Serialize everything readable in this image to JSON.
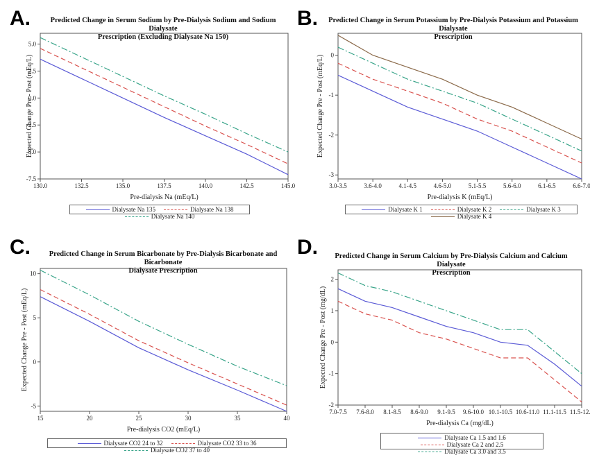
{
  "panels": [
    {
      "letter": "A.",
      "title_line1": "Predicted Change in Serum Sodium by Pre-Dialysis Sodium and Sodium Dialysate",
      "title_line2": "Prescription (Excluding Dialysate Na 150)"
    },
    {
      "letter": "B.",
      "title_line1": "Predicted Change in Serum Potassium by Pre-Dialysis Potassium and Potassium Dialysate",
      "title_line2": "Prescription"
    },
    {
      "letter": "C.",
      "title_line1": "Predicted Change in Serum Bicarbonate by Pre-Dialysis Bicarbonate and Bicarbonate",
      "title_line2": "Dialysate Prescription"
    },
    {
      "letter": "D.",
      "title_line1": "Predicted Change in Serum Calcium by Pre-Dialysis Calcium and Calcium Dialysate",
      "title_line2": "Prescription"
    }
  ],
  "colors": {
    "blue": "#5b5bd6",
    "red": "#d9534f",
    "green": "#3aa58a",
    "brown": "#8b6a4a"
  },
  "chart_data": [
    {
      "type": "line",
      "title": "Predicted Change in Serum Sodium by Pre-Dialysis Sodium and Sodium Dialysate Prescription (Excluding Dialysate Na 150)",
      "xlabel": "Pre-dialysis Na (mEq/L)",
      "ylabel": "Expected Change Pre - Post (mEq/L)",
      "xlim": [
        130,
        145
      ],
      "ylim": [
        -7.5,
        6
      ],
      "xticks": [
        130,
        132.5,
        135,
        137.5,
        140,
        142.5,
        145
      ],
      "xtick_labels": [
        "130.0",
        "132.5",
        "135.0",
        "137.5",
        "140.0",
        "142.5",
        "145.0"
      ],
      "yticks": [
        -7.5,
        -5,
        -2.5,
        0,
        2.5,
        5
      ],
      "ytick_labels": [
        "-7.5",
        "-5.0",
        "-2.5",
        "0.0",
        "2.5",
        "5.0"
      ],
      "x": [
        130,
        132.5,
        135,
        137.5,
        140,
        142.5,
        145
      ],
      "series": [
        {
          "name": "Dialysate Na 135",
          "color": "blue",
          "dash": "solid",
          "values": [
            3.6,
            1.8,
            0.0,
            -1.8,
            -3.5,
            -5.2,
            -7.1
          ]
        },
        {
          "name": "Dialysate Na 138",
          "color": "red",
          "dash": "dashed",
          "values": [
            4.6,
            2.8,
            1.0,
            -0.8,
            -2.6,
            -4.3,
            -6.1
          ]
        },
        {
          "name": "Dialysate Na 140",
          "color": "green",
          "dash": "dashdot",
          "values": [
            5.6,
            3.8,
            2.0,
            0.2,
            -1.5,
            -3.3,
            -5.0
          ]
        }
      ],
      "legend": "bottom"
    },
    {
      "type": "line",
      "title": "Predicted Change in Serum Potassium by Pre-Dialysis Potassium and Potassium Dialysate Prescription",
      "xlabel": "Pre-dialysis K (mEq/L)",
      "ylabel": "Expected Change Pre - Post (mEq/L)",
      "ylim": [
        -3.1,
        0.55
      ],
      "categories": [
        "3.0-3.5",
        "3.6-4.0",
        "4.1-4.5",
        "4.6-5.0",
        "5.1-5.5",
        "5.6-6.0",
        "6.1-6.5",
        "6.6-7.0"
      ],
      "yticks": [
        -3,
        -2,
        -1,
        0
      ],
      "ytick_labels": [
        "-3",
        "-2",
        "-1",
        "0"
      ],
      "series": [
        {
          "name": "Dialysate K 1",
          "color": "blue",
          "dash": "solid",
          "values": [
            -0.5,
            -0.9,
            -1.3,
            -1.6,
            -1.9,
            -2.3,
            -2.7,
            -3.1
          ]
        },
        {
          "name": "Dialysate K 2",
          "color": "red",
          "dash": "dashed",
          "values": [
            -0.2,
            -0.6,
            -0.9,
            -1.2,
            -1.6,
            -1.9,
            -2.3,
            -2.7
          ]
        },
        {
          "name": "Dialysate K 3",
          "color": "green",
          "dash": "dashdot",
          "values": [
            0.2,
            -0.2,
            -0.6,
            -0.9,
            -1.2,
            -1.6,
            -2.0,
            -2.4
          ]
        },
        {
          "name": "Dialysate K 4",
          "color": "brown",
          "dash": "solid",
          "values": [
            0.5,
            0.0,
            -0.3,
            -0.6,
            -1.0,
            -1.3,
            -1.7,
            -2.1
          ]
        }
      ],
      "legend": "bottom"
    },
    {
      "type": "line",
      "title": "Predicted Change in Serum Bicarbonate by Pre-Dialysis Bicarbonate and Bicarbonate Dialysate Prescription",
      "xlabel": "Pre-dialysis CO2 (mEq/L)",
      "ylabel": "Expected Change Pre - Post (mEq/L)",
      "xlim": [
        15,
        40
      ],
      "ylim": [
        -5.6,
        10.6
      ],
      "xticks": [
        15,
        20,
        25,
        30,
        35,
        40
      ],
      "xtick_labels": [
        "15",
        "20",
        "25",
        "30",
        "35",
        "40"
      ],
      "yticks": [
        -5,
        0,
        5,
        10
      ],
      "ytick_labels": [
        "-5",
        "0",
        "5",
        "10"
      ],
      "x": [
        15,
        20,
        25,
        30,
        35,
        40
      ],
      "series": [
        {
          "name": "Dialysate CO2 24 to 32",
          "color": "blue",
          "dash": "solid",
          "values": [
            7.4,
            4.6,
            1.6,
            -0.9,
            -3.2,
            -5.6
          ]
        },
        {
          "name": "Dialysate CO2 33 to 36",
          "color": "red",
          "dash": "dashed",
          "values": [
            8.2,
            5.4,
            2.4,
            -0.1,
            -2.5,
            -4.9
          ]
        },
        {
          "name": "Dialysate CO2 37 to 40",
          "color": "green",
          "dash": "dashdot",
          "values": [
            10.4,
            7.6,
            4.6,
            2.0,
            -0.5,
            -2.7
          ]
        }
      ],
      "legend": "bottom"
    },
    {
      "type": "line",
      "title": "Predicted Change in Serum Calcium by Pre-Dialysis Calcium and Calcium Dialysate Prescription",
      "xlabel": "Pre-dialysis Ca (mg/dL)",
      "ylabel": "Expected Change Pre - Post (mg/dL)",
      "ylim": [
        -2.0,
        2.3
      ],
      "categories": [
        "7.0-7.5",
        "7.6-8.0",
        "8.1-8.5",
        "8.6-9.0",
        "9.1-9.5",
        "9.6-10.0",
        "10.1-10.5",
        "10.6-11.0",
        "11.1-11.5",
        "11.5-12.0"
      ],
      "yticks": [
        -2,
        -1,
        0,
        1,
        2
      ],
      "ytick_labels": [
        "-2",
        "-1",
        "0",
        "1",
        "2"
      ],
      "series": [
        {
          "name": "Dialysate Ca 1.5 and 1.6",
          "color": "blue",
          "dash": "solid",
          "values": [
            1.7,
            1.3,
            1.1,
            0.8,
            0.5,
            0.3,
            0.0,
            -0.1,
            -0.7,
            -1.4
          ]
        },
        {
          "name": "Dialysate Ca 2 and 2.5",
          "color": "red",
          "dash": "dashed",
          "values": [
            1.3,
            0.9,
            0.7,
            0.3,
            0.1,
            -0.2,
            -0.5,
            -0.5,
            -1.2,
            -1.9
          ]
        },
        {
          "name": "Dialysate Ca 3.0 and 3.5",
          "color": "green",
          "dash": "dashdot",
          "values": [
            2.2,
            1.8,
            1.6,
            1.3,
            1.0,
            0.7,
            0.4,
            0.4,
            -0.3,
            -1.0
          ]
        }
      ],
      "legend": "bottom"
    }
  ]
}
